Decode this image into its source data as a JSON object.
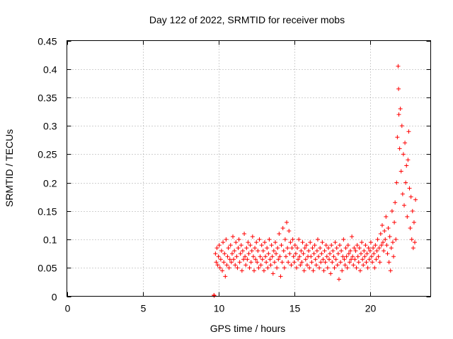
{
  "chart_data": {
    "type": "scatter",
    "title": "Day 122 of 2022, SRMTID for receiver mobs",
    "xlabel": "GPS time / hours",
    "ylabel": "SRMTID / TECUs",
    "xlim": [
      0,
      24
    ],
    "ylim": [
      0,
      0.45
    ],
    "xticks": [
      0,
      5,
      10,
      15,
      20
    ],
    "xtick_labels": [
      "0",
      "5",
      "10",
      "15",
      "20"
    ],
    "yticks": [
      0,
      0.05,
      0.1,
      0.15,
      0.2,
      0.25,
      0.3,
      0.35,
      0.4,
      0.45
    ],
    "ytick_labels": [
      "0",
      "0.05",
      "0.1",
      "0.15",
      "0.2",
      "0.25",
      "0.3",
      "0.35",
      "0.4",
      "0.45"
    ],
    "grid": true,
    "legend": "none",
    "marker": "plus",
    "color": "#ff0000",
    "series": [
      {
        "name": "SRMTID",
        "points": [
          [
            9.7,
            0.002
          ],
          [
            9.72,
            0.001
          ],
          [
            9.8,
            0.075
          ],
          [
            9.85,
            0.06
          ],
          [
            9.9,
            0.085
          ],
          [
            9.95,
            0.055
          ],
          [
            10.0,
            0.07
          ],
          [
            10.05,
            0.09
          ],
          [
            10.1,
            0.05
          ],
          [
            10.15,
            0.065
          ],
          [
            10.2,
            0.08
          ],
          [
            10.25,
            0.045
          ],
          [
            10.3,
            0.095
          ],
          [
            10.35,
            0.06
          ],
          [
            10.4,
            0.075
          ],
          [
            10.45,
            0.035
          ],
          [
            10.5,
            0.1
          ],
          [
            10.55,
            0.055
          ],
          [
            10.6,
            0.07
          ],
          [
            10.65,
            0.085
          ],
          [
            10.7,
            0.05
          ],
          [
            10.75,
            0.065
          ],
          [
            10.8,
            0.09
          ],
          [
            10.85,
            0.06
          ],
          [
            10.9,
            0.075
          ],
          [
            10.95,
            0.105
          ],
          [
            11.0,
            0.065
          ],
          [
            11.05,
            0.08
          ],
          [
            11.1,
            0.055
          ],
          [
            11.15,
            0.095
          ],
          [
            11.2,
            0.07
          ],
          [
            11.25,
            0.05
          ],
          [
            11.3,
            0.085
          ],
          [
            11.35,
            0.1
          ],
          [
            11.4,
            0.06
          ],
          [
            11.45,
            0.075
          ],
          [
            11.5,
            0.09
          ],
          [
            11.55,
            0.045
          ],
          [
            11.6,
            0.08
          ],
          [
            11.65,
            0.065
          ],
          [
            11.7,
            0.11
          ],
          [
            11.75,
            0.07
          ],
          [
            11.8,
            0.055
          ],
          [
            11.85,
            0.085
          ],
          [
            11.9,
            0.065
          ],
          [
            11.95,
            0.095
          ],
          [
            12.0,
            0.075
          ],
          [
            12.05,
            0.05
          ],
          [
            12.1,
            0.09
          ],
          [
            12.15,
            0.06
          ],
          [
            12.2,
            0.08
          ],
          [
            12.25,
            0.105
          ],
          [
            12.3,
            0.07
          ],
          [
            12.35,
            0.045
          ],
          [
            12.4,
            0.085
          ],
          [
            12.45,
            0.065
          ],
          [
            12.5,
            0.095
          ],
          [
            12.55,
            0.06
          ],
          [
            12.6,
            0.08
          ],
          [
            12.65,
            0.05
          ],
          [
            12.7,
            0.1
          ],
          [
            12.75,
            0.07
          ],
          [
            12.8,
            0.055
          ],
          [
            12.85,
            0.09
          ],
          [
            12.9,
            0.065
          ],
          [
            12.95,
            0.08
          ],
          [
            13.0,
            0.045
          ],
          [
            13.05,
            0.095
          ],
          [
            13.1,
            0.07
          ],
          [
            13.15,
            0.06
          ],
          [
            13.2,
            0.085
          ],
          [
            13.25,
            0.05
          ],
          [
            13.3,
            0.075
          ],
          [
            13.35,
            0.1
          ],
          [
            13.4,
            0.065
          ],
          [
            13.45,
            0.055
          ],
          [
            13.5,
            0.09
          ],
          [
            13.55,
            0.07
          ],
          [
            13.6,
            0.04
          ],
          [
            13.65,
            0.08
          ],
          [
            13.7,
            0.06
          ],
          [
            13.75,
            0.095
          ],
          [
            13.8,
            0.075
          ],
          [
            13.85,
            0.05
          ],
          [
            13.9,
            0.085
          ],
          [
            13.95,
            0.065
          ],
          [
            14.0,
            0.11
          ],
          [
            14.05,
            0.07
          ],
          [
            14.1,
            0.035
          ],
          [
            14.15,
            0.09
          ],
          [
            14.2,
            0.06
          ],
          [
            14.25,
            0.12
          ],
          [
            14.3,
            0.08
          ],
          [
            14.35,
            0.05
          ],
          [
            14.4,
            0.1
          ],
          [
            14.45,
            0.07
          ],
          [
            14.5,
            0.13
          ],
          [
            14.55,
            0.085
          ],
          [
            14.6,
            0.06
          ],
          [
            14.65,
            0.115
          ],
          [
            14.7,
            0.075
          ],
          [
            14.75,
            0.095
          ],
          [
            14.8,
            0.055
          ],
          [
            14.85,
            0.085
          ],
          [
            14.9,
            0.1
          ],
          [
            14.95,
            0.07
          ],
          [
            15.0,
            0.06
          ],
          [
            15.05,
            0.09
          ],
          [
            15.1,
            0.075
          ],
          [
            15.15,
            0.05
          ],
          [
            15.2,
            0.085
          ],
          [
            15.25,
            0.065
          ],
          [
            15.3,
            0.1
          ],
          [
            15.35,
            0.07
          ],
          [
            15.4,
            0.055
          ],
          [
            15.45,
            0.08
          ],
          [
            15.5,
            0.06
          ],
          [
            15.55,
            0.095
          ],
          [
            15.6,
            0.075
          ],
          [
            15.65,
            0.045
          ],
          [
            15.7,
            0.085
          ],
          [
            15.75,
            0.065
          ],
          [
            15.8,
            0.09
          ],
          [
            15.85,
            0.055
          ],
          [
            15.9,
            0.07
          ],
          [
            15.95,
            0.08
          ],
          [
            16.0,
            0.05
          ],
          [
            16.05,
            0.095
          ],
          [
            16.1,
            0.07
          ],
          [
            16.15,
            0.06
          ],
          [
            16.2,
            0.085
          ],
          [
            16.25,
            0.045
          ],
          [
            16.3,
            0.075
          ],
          [
            16.35,
            0.09
          ],
          [
            16.4,
            0.065
          ],
          [
            16.45,
            0.055
          ],
          [
            16.5,
            0.08
          ],
          [
            16.55,
            0.1
          ],
          [
            16.6,
            0.07
          ],
          [
            16.65,
            0.05
          ],
          [
            16.7,
            0.085
          ],
          [
            16.75,
            0.06
          ],
          [
            16.8,
            0.075
          ],
          [
            16.85,
            0.095
          ],
          [
            16.9,
            0.065
          ],
          [
            16.95,
            0.045
          ],
          [
            17.0,
            0.08
          ],
          [
            17.05,
            0.06
          ],
          [
            17.1,
            0.09
          ],
          [
            17.15,
            0.07
          ],
          [
            17.2,
            0.05
          ],
          [
            17.25,
            0.085
          ],
          [
            17.3,
            0.065
          ],
          [
            17.35,
            0.075
          ],
          [
            17.4,
            0.04
          ],
          [
            17.45,
            0.09
          ],
          [
            17.5,
            0.06
          ],
          [
            17.55,
            0.08
          ],
          [
            17.6,
            0.07
          ],
          [
            17.65,
            0.05
          ],
          [
            17.7,
            0.095
          ],
          [
            17.75,
            0.065
          ],
          [
            17.8,
            0.085
          ],
          [
            17.85,
            0.055
          ],
          [
            17.9,
            0.075
          ],
          [
            17.95,
            0.03
          ],
          [
            18.0,
            0.09
          ],
          [
            18.05,
            0.06
          ],
          [
            18.1,
            0.08
          ],
          [
            18.15,
            0.045
          ],
          [
            18.2,
            0.07
          ],
          [
            18.25,
            0.1
          ],
          [
            18.3,
            0.065
          ],
          [
            18.35,
            0.055
          ],
          [
            18.4,
            0.085
          ],
          [
            18.45,
            0.07
          ],
          [
            18.5,
            0.05
          ],
          [
            18.55,
            0.09
          ],
          [
            18.6,
            0.075
          ],
          [
            18.65,
            0.06
          ],
          [
            18.7,
            0.08
          ],
          [
            18.75,
            0.065
          ],
          [
            18.8,
            0.105
          ],
          [
            18.85,
            0.07
          ],
          [
            18.9,
            0.055
          ],
          [
            18.95,
            0.085
          ],
          [
            19.0,
            0.065
          ],
          [
            19.05,
            0.08
          ],
          [
            19.1,
            0.05
          ],
          [
            19.15,
            0.09
          ],
          [
            19.2,
            0.07
          ],
          [
            19.25,
            0.06
          ],
          [
            19.3,
            0.085
          ],
          [
            19.35,
            0.045
          ],
          [
            19.4,
            0.075
          ],
          [
            19.45,
            0.095
          ],
          [
            19.5,
            0.065
          ],
          [
            19.55,
            0.055
          ],
          [
            19.6,
            0.08
          ],
          [
            19.65,
            0.07
          ],
          [
            19.7,
            0.09
          ],
          [
            19.75,
            0.06
          ],
          [
            19.8,
            0.075
          ],
          [
            19.85,
            0.05
          ],
          [
            19.9,
            0.085
          ],
          [
            19.95,
            0.065
          ],
          [
            20.0,
            0.08
          ],
          [
            20.05,
            0.095
          ],
          [
            20.1,
            0.07
          ],
          [
            20.15,
            0.06
          ],
          [
            20.2,
            0.085
          ],
          [
            20.25,
            0.075
          ],
          [
            20.3,
            0.05
          ],
          [
            20.35,
            0.09
          ],
          [
            20.4,
            0.065
          ],
          [
            20.45,
            0.08
          ],
          [
            20.5,
            0.1
          ],
          [
            20.55,
            0.07
          ],
          [
            20.6,
            0.085
          ],
          [
            20.65,
            0.06
          ],
          [
            20.7,
            0.11
          ],
          [
            20.75,
            0.09
          ],
          [
            20.8,
            0.125
          ],
          [
            20.85,
            0.095
          ],
          [
            20.9,
            0.08
          ],
          [
            20.95,
            0.115
          ],
          [
            21.0,
            0.1
          ],
          [
            21.05,
            0.14
          ],
          [
            21.1,
            0.09
          ],
          [
            21.15,
            0.075
          ],
          [
            21.2,
            0.12
          ],
          [
            21.25,
            0.06
          ],
          [
            21.3,
            0.105
          ],
          [
            21.35,
            0.045
          ],
          [
            21.4,
            0.085
          ],
          [
            21.45,
            0.15
          ],
          [
            21.5,
            0.095
          ],
          [
            21.55,
            0.07
          ],
          [
            21.6,
            0.13
          ],
          [
            21.65,
            0.165
          ],
          [
            21.7,
            0.1
          ],
          [
            21.75,
            0.2
          ],
          [
            21.8,
            0.28
          ],
          [
            21.85,
            0.405
          ],
          [
            21.88,
            0.365
          ],
          [
            21.9,
            0.32
          ],
          [
            21.95,
            0.26
          ],
          [
            22.0,
            0.33
          ],
          [
            22.05,
            0.22
          ],
          [
            22.1,
            0.3
          ],
          [
            22.15,
            0.18
          ],
          [
            22.2,
            0.25
          ],
          [
            22.25,
            0.16
          ],
          [
            22.3,
            0.27
          ],
          [
            22.35,
            0.2
          ],
          [
            22.4,
            0.23
          ],
          [
            22.45,
            0.14
          ],
          [
            22.5,
            0.24
          ],
          [
            22.55,
            0.29
          ],
          [
            22.6,
            0.19
          ],
          [
            22.65,
            0.12
          ],
          [
            22.7,
            0.175
          ],
          [
            22.75,
            0.1
          ],
          [
            22.8,
            0.15
          ],
          [
            22.85,
            0.085
          ],
          [
            22.9,
            0.13
          ],
          [
            22.95,
            0.095
          ],
          [
            23.0,
            0.17
          ]
        ]
      }
    ]
  }
}
